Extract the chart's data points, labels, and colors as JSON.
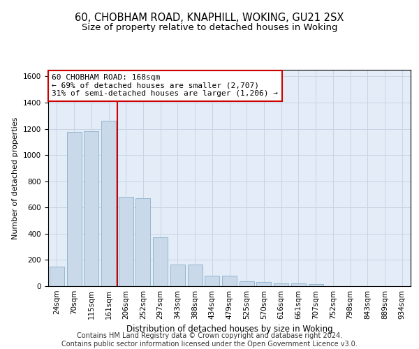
{
  "title1": "60, CHOBHAM ROAD, KNAPHILL, WOKING, GU21 2SX",
  "title2": "Size of property relative to detached houses in Woking",
  "xlabel": "Distribution of detached houses by size in Woking",
  "ylabel": "Number of detached properties",
  "categories": [
    "24sqm",
    "70sqm",
    "115sqm",
    "161sqm",
    "206sqm",
    "252sqm",
    "297sqm",
    "343sqm",
    "388sqm",
    "434sqm",
    "479sqm",
    "525sqm",
    "570sqm",
    "616sqm",
    "661sqm",
    "707sqm",
    "752sqm",
    "798sqm",
    "843sqm",
    "889sqm",
    "934sqm"
  ],
  "values": [
    150,
    1175,
    1180,
    1260,
    680,
    670,
    375,
    165,
    165,
    80,
    80,
    35,
    30,
    20,
    20,
    15,
    0,
    0,
    0,
    0,
    0
  ],
  "bar_color": "#c9d9ea",
  "bar_edge_color": "#8ab0cc",
  "red_line_index": 3,
  "annotation_text": "60 CHOBHAM ROAD: 168sqm\n← 69% of detached houses are smaller (2,707)\n31% of semi-detached houses are larger (1,206) →",
  "annotation_box_color": "#ffffff",
  "annotation_box_edge_color": "#cc0000",
  "red_line_color": "#cc0000",
  "grid_color": "#c8d4e4",
  "background_color": "#e4ecf8",
  "footer1": "Contains HM Land Registry data © Crown copyright and database right 2024.",
  "footer2": "Contains public sector information licensed under the Open Government Licence v3.0.",
  "ylim": [
    0,
    1650
  ],
  "yticks": [
    0,
    200,
    400,
    600,
    800,
    1000,
    1200,
    1400,
    1600
  ],
  "title1_fontsize": 10.5,
  "title2_fontsize": 9.5,
  "xlabel_fontsize": 8.5,
  "ylabel_fontsize": 8,
  "tick_fontsize": 7.5,
  "annotation_fontsize": 8,
  "footer_fontsize": 7
}
